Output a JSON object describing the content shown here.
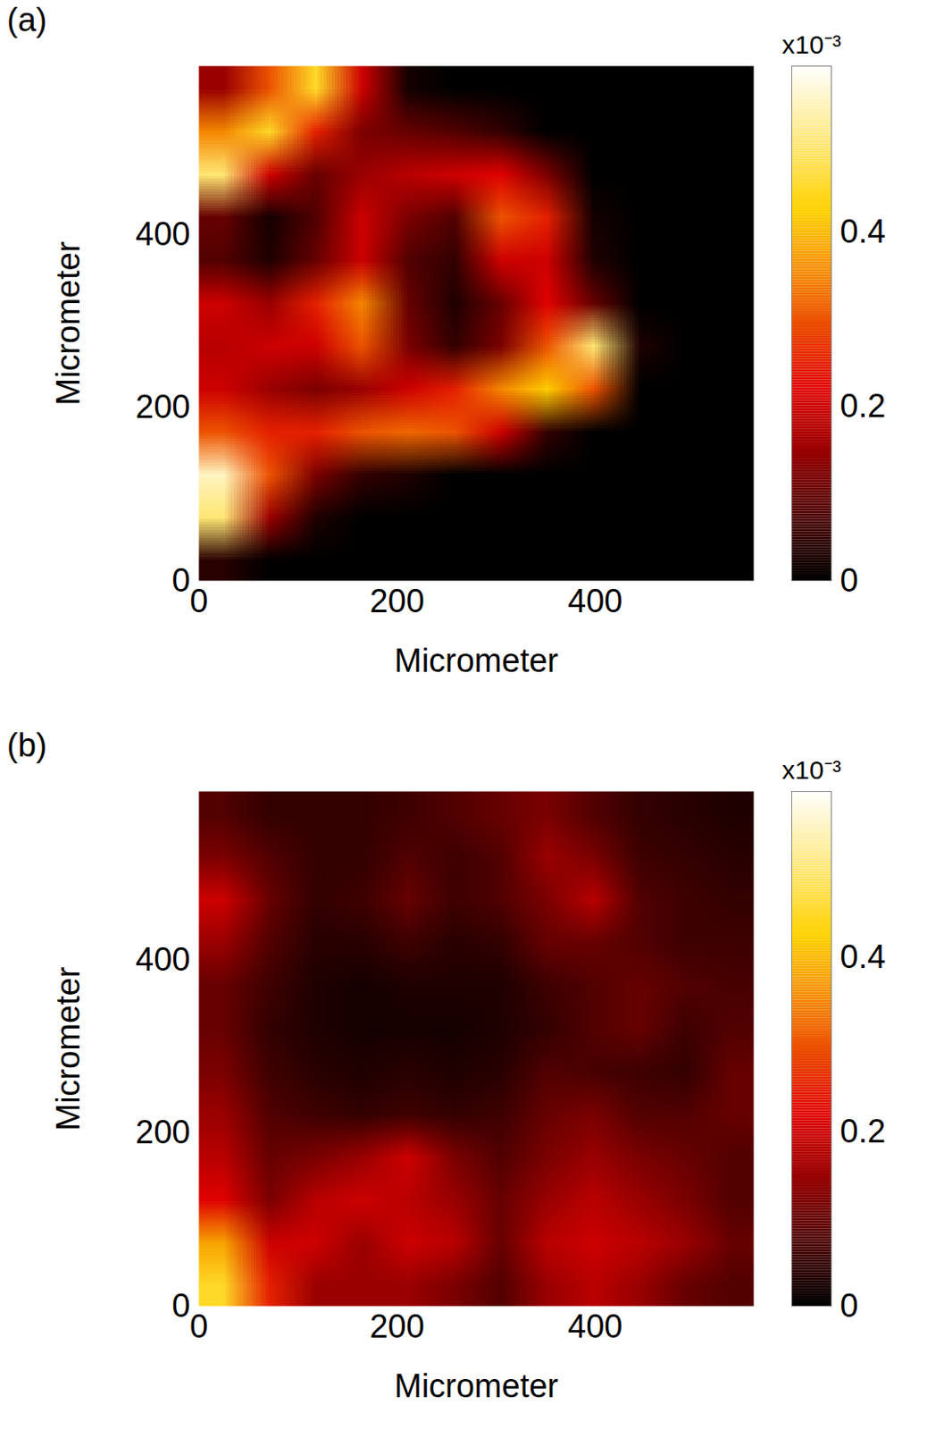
{
  "chart_data": [
    {
      "type": "heatmap",
      "title": "(a)",
      "xlabel": "Micrometer",
      "ylabel": "Micrometer",
      "xlim": [
        0,
        560
      ],
      "ylim": [
        0,
        595
      ],
      "xticks": [
        0,
        200,
        400
      ],
      "yticks": [
        0,
        200,
        400
      ],
      "color": [
        "#000000",
        "#e00000",
        "#ffd200",
        "#ffffff"
      ],
      "x": [
        23,
        70,
        117,
        163,
        210,
        257,
        303,
        350,
        397,
        443,
        490,
        537
      ],
      "y": [
        570,
        521,
        471,
        422,
        372,
        322,
        273,
        223,
        174,
        124,
        74,
        25
      ],
      "z": [
        [
          0.15,
          0.3,
          0.45,
          0.2,
          0.02,
          0,
          0,
          0,
          0,
          0,
          0,
          0
        ],
        [
          0.35,
          0.45,
          0.25,
          0.12,
          0.1,
          0.08,
          0.05,
          0,
          0,
          0,
          0,
          0
        ],
        [
          0.5,
          0.2,
          0.1,
          0.15,
          0.18,
          0.2,
          0.22,
          0.12,
          0,
          0,
          0,
          0
        ],
        [
          0.1,
          0.02,
          0.08,
          0.2,
          0.12,
          0.08,
          0.3,
          0.25,
          0.02,
          0,
          0,
          0
        ],
        [
          0.08,
          0.03,
          0.1,
          0.2,
          0.08,
          0.05,
          0.2,
          0.2,
          0.03,
          0,
          0,
          0
        ],
        [
          0.2,
          0.15,
          0.25,
          0.35,
          0.1,
          0.03,
          0.1,
          0.22,
          0.1,
          0,
          0,
          0
        ],
        [
          0.18,
          0.2,
          0.2,
          0.3,
          0.12,
          0.05,
          0.12,
          0.3,
          0.5,
          0.03,
          0,
          0
        ],
        [
          0.2,
          0.15,
          0.12,
          0.15,
          0.2,
          0.25,
          0.35,
          0.42,
          0.3,
          0,
          0,
          0
        ],
        [
          0.3,
          0.25,
          0.25,
          0.3,
          0.32,
          0.3,
          0.2,
          0.05,
          0,
          0,
          0,
          0
        ],
        [
          0.55,
          0.3,
          0.12,
          0.05,
          0.03,
          0,
          0,
          0,
          0,
          0,
          0,
          0
        ],
        [
          0.5,
          0.15,
          0.03,
          0,
          0,
          0,
          0,
          0,
          0,
          0,
          0,
          0
        ],
        [
          0.04,
          0,
          0,
          0,
          0,
          0,
          0,
          0,
          0,
          0,
          0,
          0
        ]
      ],
      "colorbar": {
        "label": "x10⁻³",
        "range": [
          0,
          0.59
        ],
        "ticks": [
          0,
          0.2,
          0.4
        ]
      }
    },
    {
      "type": "heatmap",
      "title": "(b)",
      "xlabel": "Micrometer",
      "ylabel": "Micrometer",
      "xlim": [
        0,
        560
      ],
      "ylim": [
        0,
        595
      ],
      "xticks": [
        0,
        200,
        400
      ],
      "yticks": [
        0,
        200,
        400
      ],
      "color": [
        "#000000",
        "#e00000",
        "#ffd200",
        "#ffffff"
      ],
      "x": [
        23,
        70,
        117,
        163,
        210,
        257,
        303,
        350,
        397,
        443,
        490,
        537
      ],
      "y": [
        570,
        521,
        471,
        422,
        372,
        322,
        273,
        223,
        174,
        124,
        74,
        25
      ],
      "z": [
        [
          0.08,
          0.05,
          0.05,
          0.05,
          0.06,
          0.08,
          0.1,
          0.12,
          0.08,
          0.05,
          0.04,
          0.03
        ],
        [
          0.12,
          0.08,
          0.05,
          0.05,
          0.08,
          0.06,
          0.08,
          0.15,
          0.12,
          0.06,
          0.05,
          0.04
        ],
        [
          0.2,
          0.1,
          0.05,
          0.06,
          0.1,
          0.06,
          0.08,
          0.12,
          0.18,
          0.08,
          0.06,
          0.05
        ],
        [
          0.15,
          0.08,
          0.04,
          0.04,
          0.06,
          0.04,
          0.05,
          0.1,
          0.1,
          0.08,
          0.06,
          0.06
        ],
        [
          0.1,
          0.06,
          0.03,
          0.02,
          0.03,
          0.03,
          0.03,
          0.06,
          0.08,
          0.1,
          0.08,
          0.07
        ],
        [
          0.1,
          0.05,
          0.03,
          0.02,
          0.02,
          0.02,
          0.03,
          0.05,
          0.08,
          0.1,
          0.06,
          0.08
        ],
        [
          0.12,
          0.06,
          0.04,
          0.03,
          0.04,
          0.03,
          0.04,
          0.08,
          0.07,
          0.06,
          0.05,
          0.1
        ],
        [
          0.15,
          0.08,
          0.06,
          0.05,
          0.06,
          0.05,
          0.06,
          0.1,
          0.12,
          0.08,
          0.08,
          0.1
        ],
        [
          0.18,
          0.1,
          0.12,
          0.15,
          0.2,
          0.12,
          0.08,
          0.12,
          0.15,
          0.12,
          0.1,
          0.08
        ],
        [
          0.22,
          0.12,
          0.18,
          0.2,
          0.18,
          0.15,
          0.1,
          0.15,
          0.18,
          0.15,
          0.12,
          0.08
        ],
        [
          0.38,
          0.2,
          0.2,
          0.15,
          0.2,
          0.18,
          0.1,
          0.18,
          0.2,
          0.18,
          0.15,
          0.1
        ],
        [
          0.45,
          0.25,
          0.15,
          0.15,
          0.15,
          0.12,
          0.08,
          0.15,
          0.18,
          0.15,
          0.1,
          0.08
        ]
      ],
      "colorbar": {
        "label": "x10⁻³",
        "range": [
          0,
          0.59
        ],
        "ticks": [
          0,
          0.2,
          0.4
        ]
      }
    }
  ]
}
